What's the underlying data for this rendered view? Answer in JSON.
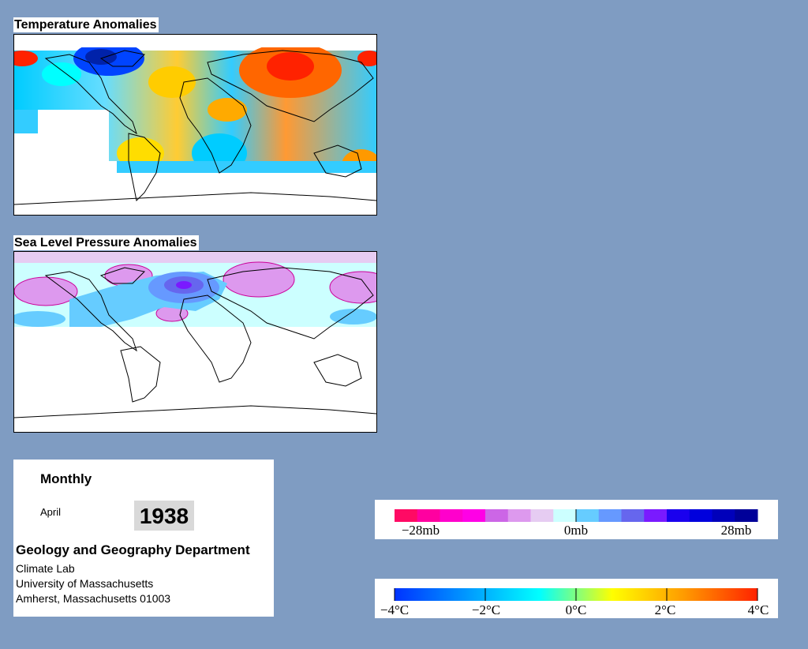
{
  "panels": {
    "temperature": {
      "title": "Temperature Anomalies"
    },
    "pressure": {
      "title": "Sea Level Pressure Anomalies"
    }
  },
  "info": {
    "frequency": "Monthly",
    "month": "April",
    "year": "1938",
    "department": "Geology and Geography Department",
    "lab": "Climate Lab",
    "university": "University of Massachusetts",
    "address": "Amherst, Massachusetts 01003"
  },
  "pressure_legend": {
    "labels": [
      "−28mb",
      "0mb",
      "28mb"
    ],
    "colors": [
      "#ff0a64",
      "#ff00a0",
      "#ff00cc",
      "#ff00e6",
      "#cc66e6",
      "#dd99ee",
      "#e6ccf2",
      "#ccffff",
      "#66ccff",
      "#6699ff",
      "#6666ee",
      "#7a1aff",
      "#1a00ee",
      "#0000dd",
      "#0000bb",
      "#000099"
    ]
  },
  "temperature_legend": {
    "labels": [
      "−4°C",
      "−2°C",
      "0°C",
      "2°C",
      "4°C"
    ],
    "colors": [
      "#0033ff",
      "#0099ff",
      "#00ffff",
      "#ffff00",
      "#ff9900",
      "#ff2200"
    ]
  },
  "colors": {
    "background": "#7f9cc2",
    "land_outline": "#000000",
    "missing_data": "#ffffff"
  }
}
